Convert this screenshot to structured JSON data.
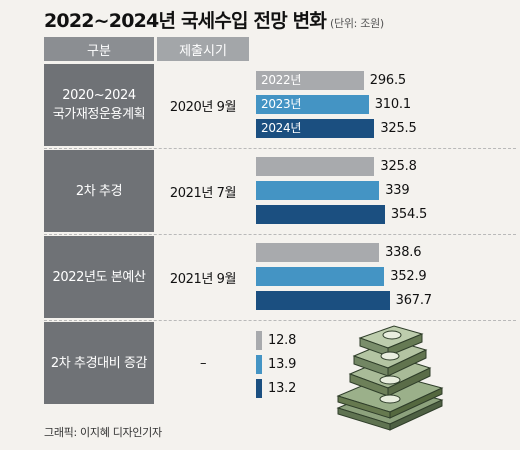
{
  "title": "2022~2024년 국세수입 전망 변화",
  "unit": "(단위: 조원)",
  "header": {
    "category": "구분",
    "date": "제출시기"
  },
  "rows": [
    {
      "category_lines": [
        "2020~2024",
        "국가재정운용계획"
      ],
      "date": "2020년 9월"
    },
    {
      "category_lines": [
        "2차 추경"
      ],
      "date": "2021년 7월"
    },
    {
      "category_lines": [
        "2022년도 본예산"
      ],
      "date": "2021년 9월"
    },
    {
      "category_lines": [
        "2차 추경대비 증감"
      ],
      "date": "–"
    }
  ],
  "colors": {
    "2022년": "#a8aaad",
    "2023년": "#4494c4",
    "2024년": "#1b4f80"
  },
  "chart_data": {
    "type": "bar",
    "orientation": "horizontal",
    "groups": [
      "2020~2024 국가재정운용계획",
      "2차 추경",
      "2022년도 본예산",
      "2차 추경대비 증감"
    ],
    "series": [
      {
        "name": "2022년",
        "values": [
          296.5,
          325.8,
          338.6,
          12.8
        ]
      },
      {
        "name": "2023년",
        "values": [
          310.1,
          339,
          352.9,
          13.9
        ]
      },
      {
        "name": "2024년",
        "values": [
          325.5,
          354.5,
          367.7,
          13.2
        ]
      }
    ],
    "labels": [
      [
        "296.5",
        "310.1",
        "325.5"
      ],
      [
        "325.8",
        "339",
        "354.5"
      ],
      [
        "338.6",
        "352.9",
        "367.7"
      ],
      [
        "12.8",
        "13.9",
        "13.2"
      ]
    ],
    "legend_in_bars": [
      "2022년",
      "2023년",
      "2024년"
    ]
  },
  "credit": "그래픽: 이지혜 디자인기자"
}
